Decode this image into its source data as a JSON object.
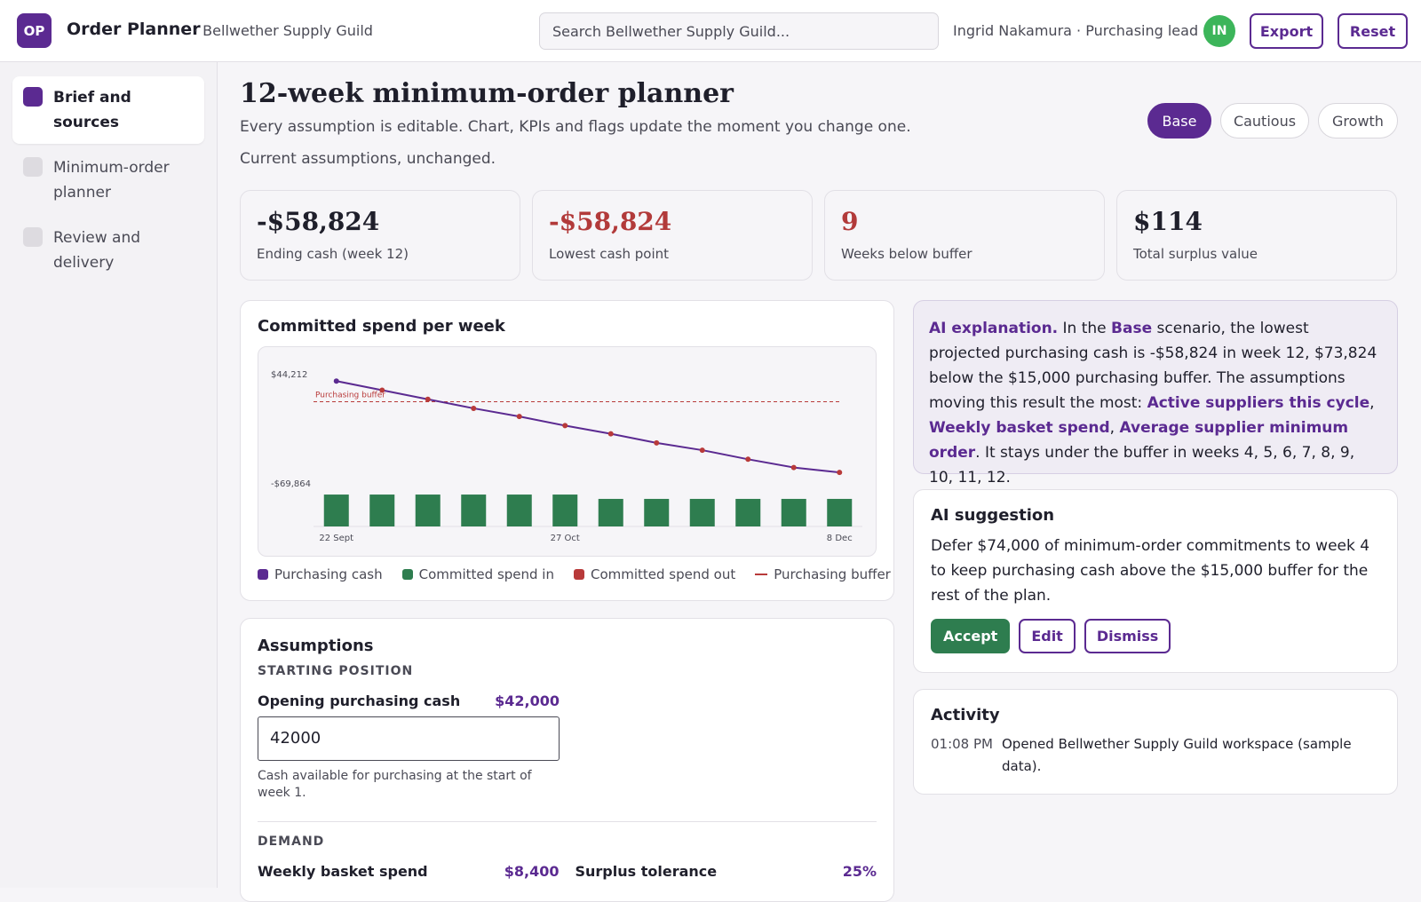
{
  "header": {
    "logo": "OP",
    "app": "Order Planner",
    "org": "· Bellwether Supply Guild",
    "search": "Search Bellwether Supply Guild...",
    "user": "Ingrid Nakamura · Purchasing lead",
    "avatar": "IN",
    "buttons": [
      "Export",
      "Reset"
    ]
  },
  "sidebar": {
    "steps": [
      {
        "label": "Brief and sources",
        "active": true
      },
      {
        "label": "Minimum-order planner",
        "active": false
      },
      {
        "label": "Review and delivery",
        "active": false
      }
    ]
  },
  "page": {
    "title": "12-week minimum-order planner",
    "subtitle": "Every assumption is editable. Chart, KPIs and flags update the moment you change one.",
    "status": "Current assumptions, unchanged.",
    "scenarios": [
      "Base",
      "Cautious",
      "Growth"
    ],
    "active_scenario": 0
  },
  "kpis": [
    {
      "value": "-$58,824",
      "label": "Ending cash (week 12)",
      "color": "#1f1f2b"
    },
    {
      "value": "-$58,824",
      "label": "Lowest cash point",
      "color": "#b23a3a"
    },
    {
      "value": "9",
      "label": "Weeks below buffer",
      "color": "#b23a3a"
    },
    {
      "value": "$114",
      "label": "Total surplus value",
      "color": "#1f1f2b"
    }
  ],
  "chart_data": {
    "type": "line",
    "title": "Committed spend per week",
    "categories": [
      "22 Sept",
      null,
      null,
      null,
      null,
      "27 Oct",
      null,
      null,
      null,
      null,
      null,
      "8 Dec"
    ],
    "series": [
      {
        "name": "Purchasing cash",
        "color": "#5b2a91",
        "marker_color": "#b83a3a",
        "values": [
          36600,
          27100,
          17600,
          8100,
          -450,
          -9950,
          -18500,
          -28000,
          -35600,
          -45100,
          -53700,
          -58824
        ]
      },
      {
        "name": "Committed spend in",
        "color": "#2e7d4f",
        "axis": "y2",
        "values": [
          31600,
          31600,
          31600,
          31600,
          31600,
          31600,
          27300,
          27300,
          27300,
          27300,
          27300,
          27300
        ]
      },
      {
        "name": "Committed spend out",
        "color": "#b83a3a"
      }
    ],
    "buffer": {
      "label": "Purchasing buffer",
      "value": 15000,
      "color": "#b83a3a"
    },
    "ylim": [
      -115300,
      53500
    ],
    "yticks": [
      {
        "value": 44212,
        "label": "$44,212"
      },
      {
        "value": -69864,
        "label": "-$69,864"
      }
    ],
    "y2lim": [
      0,
      160000
    ]
  },
  "explanation": {
    "parts": [
      {
        "text": "AI explanation.",
        "bold": true
      },
      {
        "text": " In the ",
        "bold": false
      },
      {
        "text": "Base",
        "bold": true
      },
      {
        "text": " scenario, the lowest projected purchasing cash is -$58,824 in week 12, $73,824 below the $15,000 purchasing buffer. The assumptions moving this result the most: ",
        "bold": false
      },
      {
        "text": "Active suppliers this cycle",
        "bold": true
      },
      {
        "text": ", ",
        "bold": false
      },
      {
        "text": "Weekly basket spend",
        "bold": true
      },
      {
        "text": ", ",
        "bold": false
      },
      {
        "text": "Average supplier minimum order",
        "bold": true
      },
      {
        "text": ". It stays under the buffer in weeks 4, 5, 6, 7, 8, 9, 10, 11, 12.",
        "bold": false
      }
    ]
  },
  "suggestion": {
    "title": "AI suggestion",
    "text": "Defer $74,000 of minimum-order commitments to week 4 to keep purchasing cash above the $15,000 buffer for the rest of the plan.",
    "buttons": [
      "Accept",
      "Edit",
      "Dismiss"
    ]
  },
  "activity": {
    "title": "Activity",
    "items": [
      {
        "time": "01:08 PM",
        "text": "Opened Bellwether Supply Guild workspace (sample data)."
      }
    ]
  },
  "assumptions": {
    "title": "Assumptions",
    "sections": [
      {
        "heading": "STARTING POSITION",
        "fields": [
          {
            "label": "Opening purchasing cash",
            "value": "$42,000",
            "input": "42000",
            "help": "Cash available for purchasing at the start of week 1."
          }
        ]
      },
      {
        "heading": "DEMAND",
        "fields": [
          {
            "label": "Weekly basket spend",
            "value": "$8,400"
          },
          {
            "label": "Surplus tolerance",
            "value": "25%"
          }
        ]
      }
    ]
  }
}
